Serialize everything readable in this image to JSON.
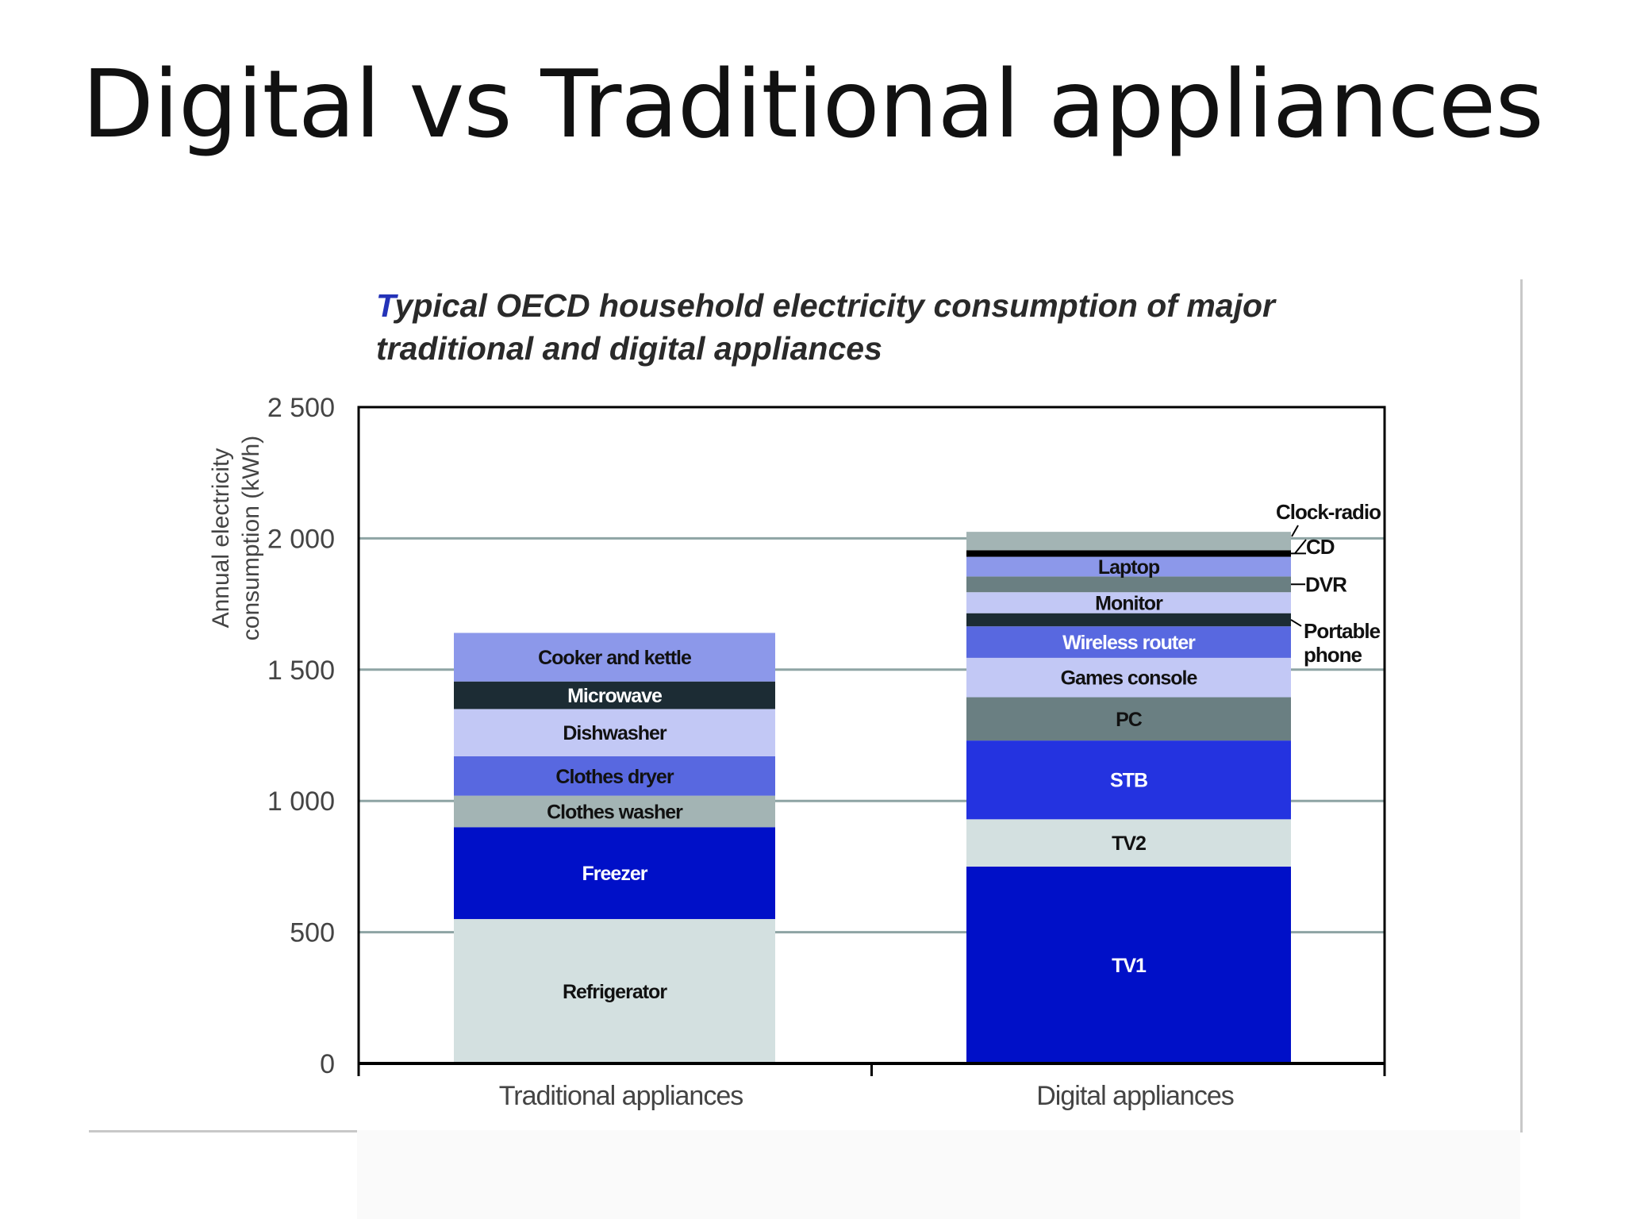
{
  "slide": {
    "title": "Digital vs Traditional appliances"
  },
  "chart_data": {
    "type": "bar",
    "stacked": true,
    "title_first_letter": "T",
    "title_rest": "ypical OECD household electricity consumption of major traditional and digital appliances",
    "ylabel_line1": "Annual electricity",
    "ylabel_line2": "consumption (kWh)",
    "xlabel": "",
    "ylim": [
      0,
      2500
    ],
    "yticks": [
      {
        "value": 0,
        "label": "0"
      },
      {
        "value": 500,
        "label": "500"
      },
      {
        "value": 1000,
        "label": "1 000"
      },
      {
        "value": 1500,
        "label": "1 500"
      },
      {
        "value": 2000,
        "label": "2 000"
      },
      {
        "value": 2500,
        "label": "2 500"
      }
    ],
    "grid": true,
    "categories": [
      "Traditional appliances",
      "Digital appliances"
    ],
    "bars": [
      {
        "category": "Traditional appliances",
        "segments": [
          {
            "name": "Refrigerator",
            "value": 550,
            "color": "#d3e0e0",
            "text_color": "#111111"
          },
          {
            "name": "Freezer",
            "value": 350,
            "color": "#0010c8",
            "text_color": "#ffffff"
          },
          {
            "name": "Clothes washer",
            "value": 120,
            "color": "#a3b4b4",
            "text_color": "#111111"
          },
          {
            "name": "Clothes dryer",
            "value": 150,
            "color": "#5868e0",
            "text_color": "#111111"
          },
          {
            "name": "Dishwasher",
            "value": 180,
            "color": "#c2c8f5",
            "text_color": "#111111"
          },
          {
            "name": "Microwave",
            "value": 105,
            "color": "#1c2c34",
            "text_color": "#ffffff"
          },
          {
            "name": "Cooker and kettle",
            "value": 185,
            "color": "#8c98ea",
            "text_color": "#111111"
          }
        ]
      },
      {
        "category": "Digital appliances",
        "segments": [
          {
            "name": "TV1",
            "value": 750,
            "color": "#0010c8",
            "text_color": "#ffffff"
          },
          {
            "name": "TV2",
            "value": 180,
            "color": "#d3e0e0",
            "text_color": "#111111"
          },
          {
            "name": "STB",
            "value": 300,
            "color": "#2433e0",
            "text_color": "#ffffff"
          },
          {
            "name": "PC",
            "value": 165,
            "color": "#6a7f82",
            "text_color": "#111111"
          },
          {
            "name": "Games console",
            "value": 150,
            "color": "#c2c8f5",
            "text_color": "#111111"
          },
          {
            "name": "Wireless router",
            "value": 120,
            "color": "#5868e0",
            "text_color": "#ffffff"
          },
          {
            "name": "Portable phone",
            "value": 50,
            "color": "#1c2c34",
            "text_color": "#ffffff",
            "external": true
          },
          {
            "name": "Monitor",
            "value": 80,
            "color": "#c2c8f5",
            "text_color": "#111111"
          },
          {
            "name": "DVR",
            "value": 60,
            "color": "#6a7f82",
            "text_color": "#111111",
            "external": true
          },
          {
            "name": "Laptop",
            "value": 75,
            "color": "#8c98ea",
            "text_color": "#111111"
          },
          {
            "name": "CD",
            "value": 25,
            "color": "#000000",
            "text_color": "#ffffff",
            "external": true
          },
          {
            "name": "Clock-radio",
            "value": 70,
            "color": "#a3b4b4",
            "text_color": "#111111",
            "external": true
          }
        ]
      }
    ],
    "external_label_texts": {
      "Clock-radio": "Clock-radio",
      "CD": "CD",
      "DVR": "DVR",
      "Portable phone line1": "Portable",
      "Portable phone line2": "phone"
    }
  }
}
